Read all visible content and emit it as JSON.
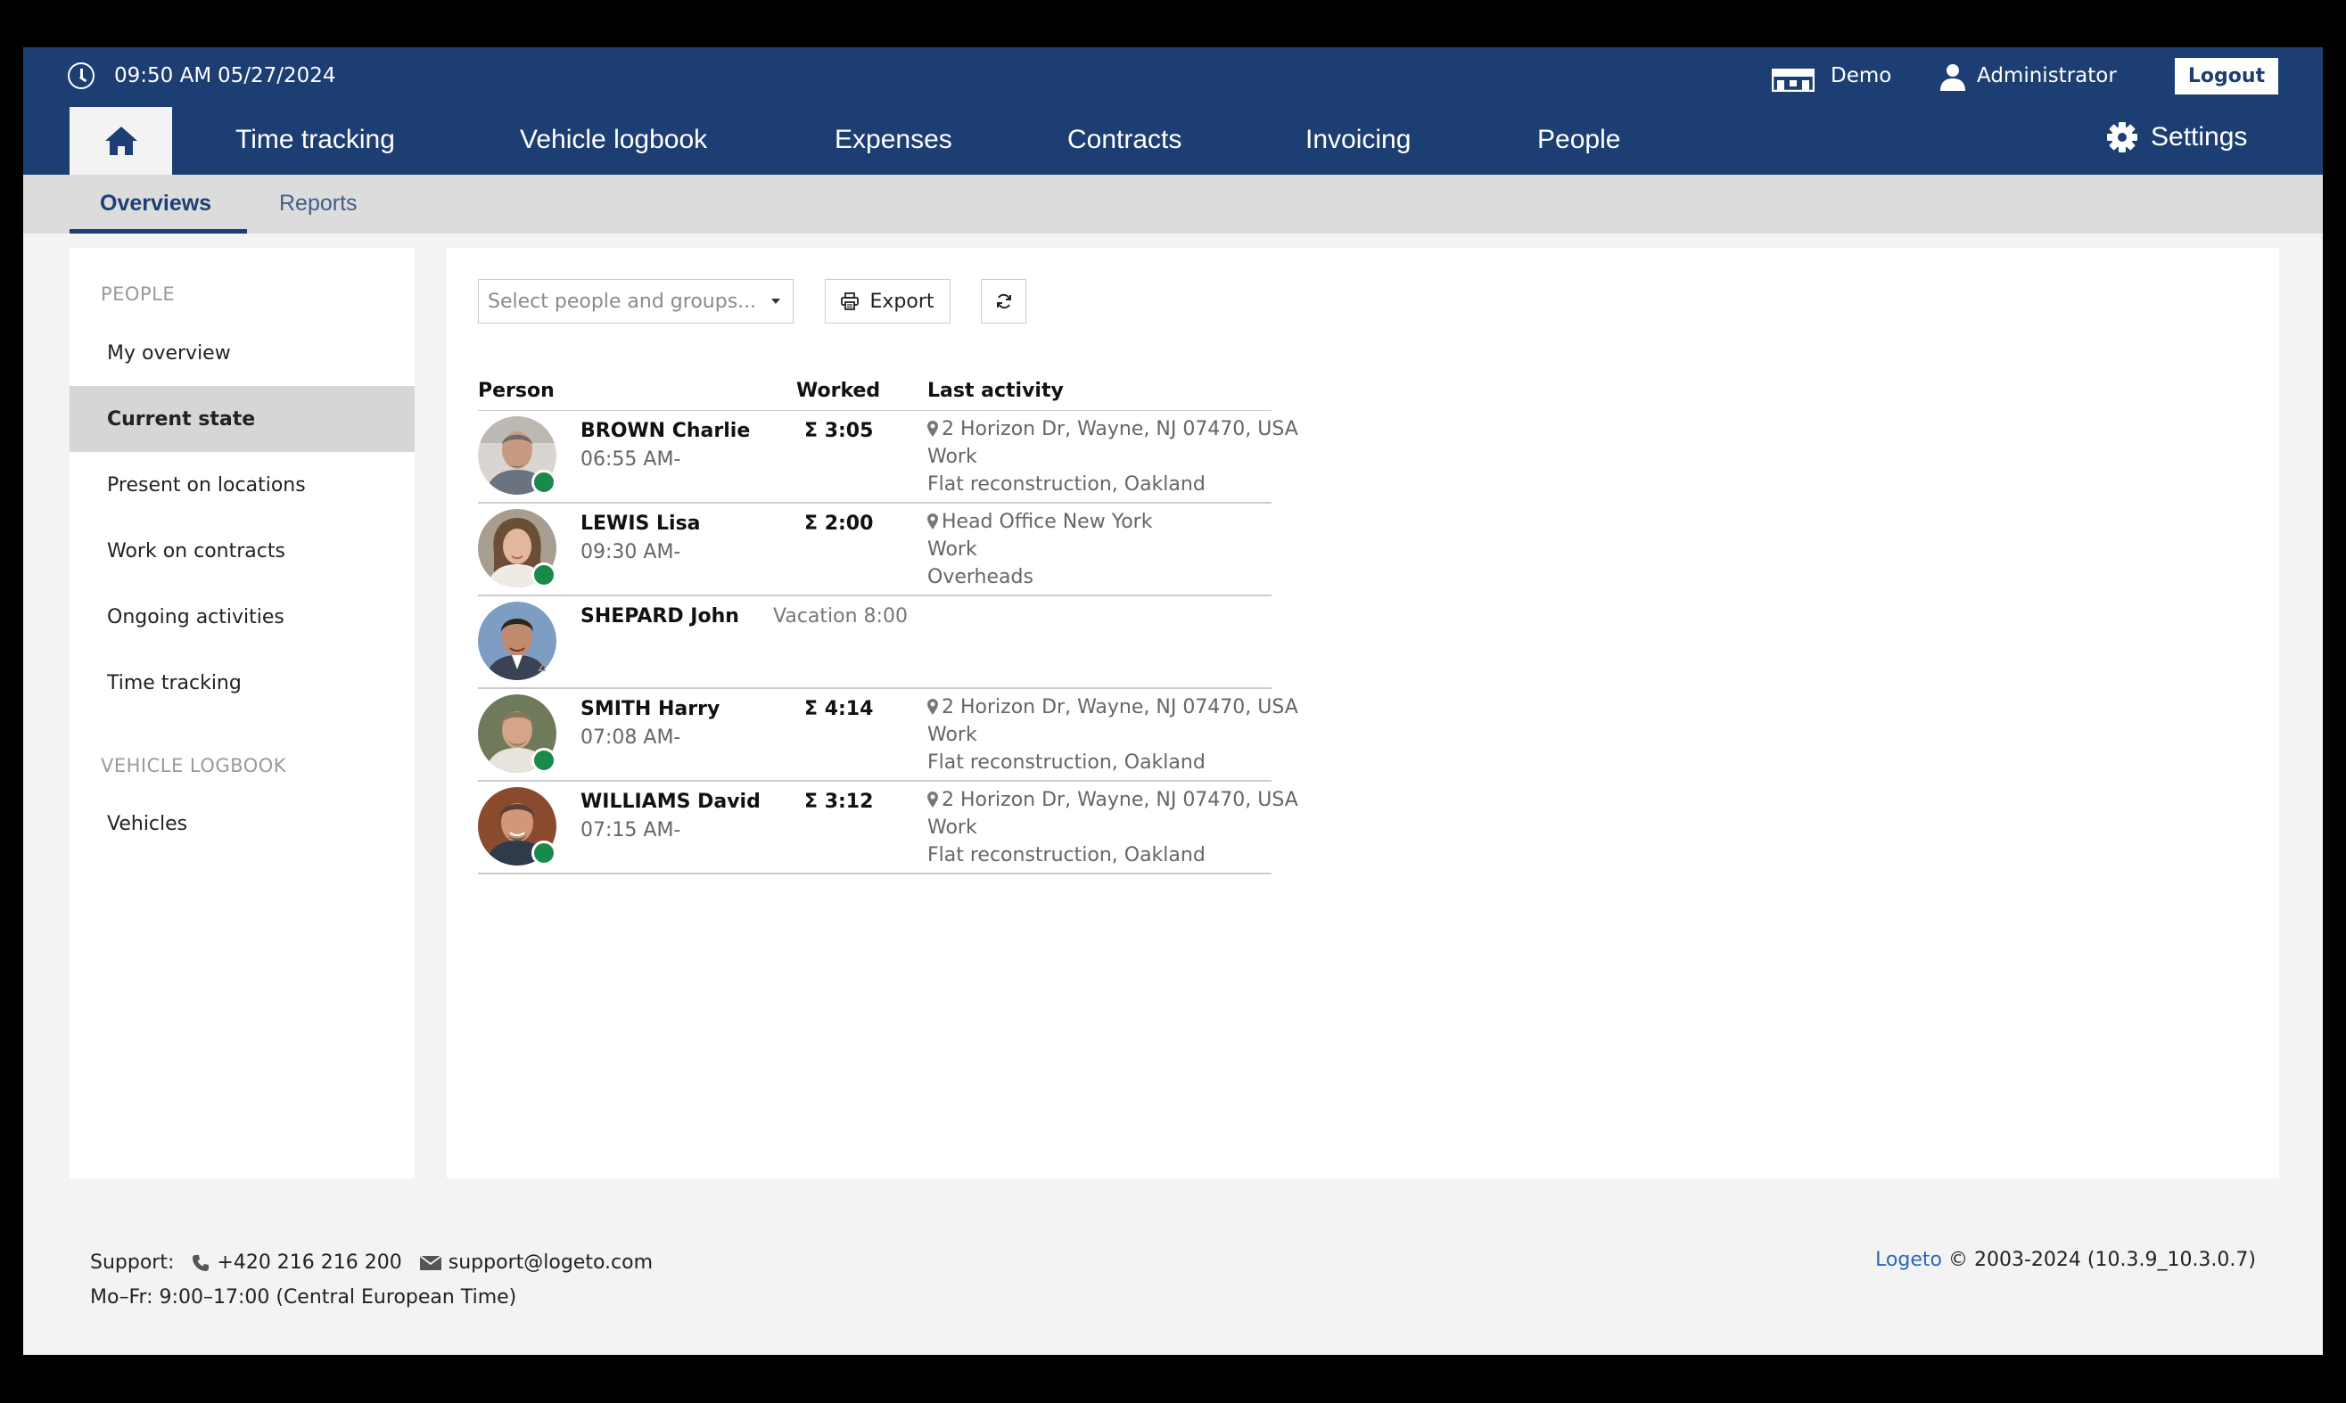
{
  "header": {
    "time": "09:50 AM",
    "date": "05/27/2024",
    "company": "Demo",
    "user": "Administrator",
    "logout_label": "Logout"
  },
  "nav": {
    "items": [
      "Time tracking",
      "Vehicle logbook",
      "Expenses",
      "Contracts",
      "Invoicing",
      "People"
    ],
    "settings_label": "Settings"
  },
  "subnav": {
    "tabs": [
      "Overviews",
      "Reports"
    ],
    "active": "Overviews"
  },
  "sidebar": {
    "sections": [
      {
        "heading": "PEOPLE",
        "items": [
          "My overview",
          "Current state",
          "Present on locations",
          "Work on contracts",
          "Ongoing activities",
          "Time tracking"
        ]
      },
      {
        "heading": "VEHICLE LOGBOOK",
        "items": [
          "Vehicles"
        ]
      }
    ],
    "active_item": "Current state"
  },
  "toolbar": {
    "select_placeholder": "Select people and groups...",
    "export_label": "Export"
  },
  "table": {
    "headers": {
      "person": "Person",
      "worked": "Worked",
      "last_activity": "Last activity"
    },
    "rows": [
      {
        "name": "BROWN Charlie",
        "start": "06:55 AM-",
        "worked": "Σ 3:05",
        "location": "2 Horizon Dr, Wayne, NJ 07470, USA",
        "activity": "Work",
        "project": "Flat reconstruction, Oakland",
        "status": "online"
      },
      {
        "name": "LEWIS Lisa",
        "start": "09:30 AM-",
        "worked": "Σ 2:00",
        "location": "Head Office New York",
        "activity": "Work",
        "project": "Overheads",
        "status": "online"
      },
      {
        "name": "SHEPARD John",
        "start": "",
        "worked": "",
        "absence": "Vacation  8:00",
        "location": "",
        "activity": "",
        "project": "",
        "status": "absent"
      },
      {
        "name": "SMITH Harry",
        "start": "07:08 AM-",
        "worked": "Σ 4:14",
        "location": "2 Horizon Dr, Wayne, NJ 07470, USA",
        "activity": "Work",
        "project": "Flat reconstruction, Oakland",
        "status": "online"
      },
      {
        "name": "WILLIAMS David",
        "start": "07:15 AM-",
        "worked": "Σ 3:12",
        "location": "2 Horizon Dr, Wayne, NJ 07470, USA",
        "activity": "Work",
        "project": "Flat reconstruction, Oakland",
        "status": "online"
      }
    ]
  },
  "footer": {
    "support_label": "Support:",
    "phone": "+420 216 216 200",
    "email": "support@logeto.com",
    "hours": "Mo–Fr: 9:00–17:00 (Central European Time)",
    "brand": "Logeto",
    "copyright": "© 2003-2024 (10.3.9_10.3.0.7)"
  },
  "colors": {
    "header_bg": "#1d3e73",
    "status_online": "#1a8a4a",
    "link": "#2a67b8"
  }
}
